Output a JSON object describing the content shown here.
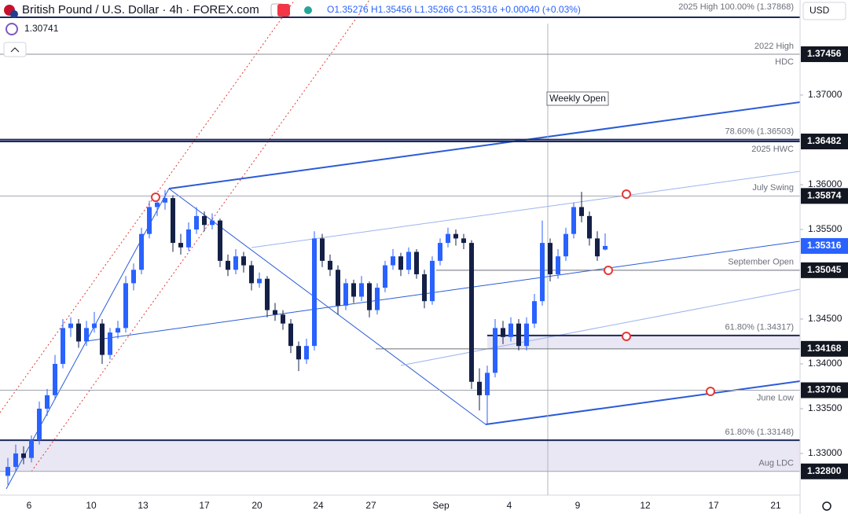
{
  "chart_data": {
    "type": "candlestick",
    "title": "British Pound / U.S. Dollar · 4h · FOREX.com",
    "ohlc_header": "O1.35276 H1.35456 L1.35266 C1.35316 +0.00040 (+0.03%)",
    "indicator_value": "1.30741",
    "currency": "USD",
    "annotation": "Weekly Open",
    "up_color": "#2962ff",
    "down_color": "#152047",
    "xlabels": [
      "6",
      "10",
      "13",
      "17",
      "20",
      "24",
      "27",
      "Sep",
      "4",
      "9",
      "12",
      "17",
      "21"
    ],
    "ylim": [
      1.32535,
      1.38061
    ],
    "yticks": [
      {
        "value": 1.37,
        "label": "1.37000"
      },
      {
        "value": 1.36,
        "label": "1.36000"
      },
      {
        "value": 1.355,
        "label": "1.35500"
      },
      {
        "value": 1.345,
        "label": "1.34500"
      },
      {
        "value": 1.34,
        "label": "1.34000"
      },
      {
        "value": 1.335,
        "label": "1.33500"
      },
      {
        "value": 1.33,
        "label": "1.33000"
      }
    ],
    "grid": false,
    "open": [
      1.3275,
      1.3285,
      1.33,
      1.3295,
      1.3315,
      1.335,
      1.3365,
      1.34,
      1.344,
      1.3445,
      1.3425,
      1.344,
      1.3445,
      1.341,
      1.3435,
      1.344,
      1.349,
      1.3505,
      1.3545,
      1.3575,
      1.358,
      1.3585,
      1.3535,
      1.353,
      1.355,
      1.3565,
      1.3555,
      1.356,
      1.3515,
      1.3505,
      1.352,
      1.351,
      1.349,
      1.3495,
      1.346,
      1.3455,
      1.3445,
      1.342,
      1.3405,
      1.342,
      1.354,
      1.3515,
      1.3505,
      1.3465,
      1.349,
      1.3475,
      1.349,
      1.346,
      1.3485,
      1.351,
      1.352,
      1.3505,
      1.3525,
      1.35,
      1.347,
      1.3515,
      1.3535,
      1.3545,
      1.354,
      1.3535,
      1.338,
      1.3365,
      1.339,
      1.344,
      1.343,
      1.3445,
      1.342,
      1.3445,
      1.347,
      1.3535,
      1.35,
      1.352,
      1.3545,
      1.3575,
      1.3565,
      1.354,
      1.35276
    ],
    "high": [
      1.3295,
      1.331,
      1.3308,
      1.332,
      1.3358,
      1.3372,
      1.341,
      1.345,
      1.3452,
      1.345,
      1.3448,
      1.3458,
      1.345,
      1.344,
      1.3448,
      1.3498,
      1.3512,
      1.3552,
      1.3582,
      1.359,
      1.3594,
      1.3588,
      1.3545,
      1.3558,
      1.3575,
      1.357,
      1.3568,
      1.3562,
      1.3522,
      1.3528,
      1.3525,
      1.3515,
      1.3502,
      1.3498,
      1.3468,
      1.346,
      1.345,
      1.3425,
      1.3428,
      1.3548,
      1.3545,
      1.3522,
      1.351,
      1.3495,
      1.3494,
      1.3498,
      1.3492,
      1.349,
      1.3515,
      1.3528,
      1.3524,
      1.353,
      1.3528,
      1.3505,
      1.352,
      1.354,
      1.3552,
      1.355,
      1.3545,
      1.3538,
      1.3395,
      1.3398,
      1.345,
      1.3448,
      1.3452,
      1.345,
      1.3452,
      1.3478,
      1.356,
      1.354,
      1.3528,
      1.3552,
      1.358,
      1.3592,
      1.357,
      1.3548,
      1.35456
    ],
    "low": [
      1.3265,
      1.328,
      1.3288,
      1.329,
      1.331,
      1.3342,
      1.336,
      1.3395,
      1.343,
      1.3418,
      1.342,
      1.3435,
      1.34,
      1.3405,
      1.3428,
      1.3435,
      1.3482,
      1.35,
      1.354,
      1.3565,
      1.3572,
      1.3525,
      1.3522,
      1.3526,
      1.3545,
      1.3548,
      1.355,
      1.3508,
      1.3498,
      1.35,
      1.3502,
      1.3482,
      1.3485,
      1.3452,
      1.3448,
      1.3438,
      1.3412,
      1.3392,
      1.34,
      1.3415,
      1.3508,
      1.3498,
      1.3455,
      1.346,
      1.3468,
      1.347,
      1.3452,
      1.3455,
      1.348,
      1.3505,
      1.3498,
      1.35,
      1.3495,
      1.3462,
      1.3466,
      1.351,
      1.353,
      1.3532,
      1.3528,
      1.3372,
      1.3348,
      1.3332,
      1.3385,
      1.3422,
      1.3425,
      1.3415,
      1.3415,
      1.344,
      1.3465,
      1.3492,
      1.3495,
      1.3515,
      1.354,
      1.3558,
      1.3532,
      1.3515,
      1.35266
    ],
    "close": [
      1.3285,
      1.33,
      1.3295,
      1.3315,
      1.335,
      1.3365,
      1.34,
      1.344,
      1.3445,
      1.3425,
      1.344,
      1.3445,
      1.341,
      1.3435,
      1.344,
      1.349,
      1.3505,
      1.3545,
      1.3575,
      1.358,
      1.3585,
      1.3535,
      1.353,
      1.355,
      1.3565,
      1.3555,
      1.356,
      1.3515,
      1.3505,
      1.352,
      1.351,
      1.349,
      1.3495,
      1.346,
      1.3455,
      1.3445,
      1.342,
      1.3405,
      1.342,
      1.354,
      1.3515,
      1.3505,
      1.3465,
      1.349,
      1.3475,
      1.349,
      1.346,
      1.3485,
      1.351,
      1.352,
      1.3505,
      1.3525,
      1.35,
      1.347,
      1.3515,
      1.3535,
      1.3545,
      1.354,
      1.3535,
      1.338,
      1.3365,
      1.339,
      1.344,
      1.343,
      1.3445,
      1.342,
      1.3445,
      1.347,
      1.3535,
      1.35,
      1.352,
      1.3545,
      1.3575,
      1.3565,
      1.354,
      1.352,
      1.35316
    ],
    "last_price_label": "1.35316",
    "last_price_color": "#2962ff",
    "levels": [
      {
        "text": "2025 High 100.00% (1.37868)",
        "value": 1.37868,
        "color": "#1c2a5a"
      },
      {
        "text": "2022 High",
        "note": "HDC",
        "value": 1.37456,
        "value_label": "1.37456",
        "color": "#8a8e99"
      },
      {
        "text": "78.60% (1.36503)",
        "value": 1.36503,
        "color": "#1c2a5a"
      },
      {
        "note": "2025 HWC",
        "value": 1.36482,
        "value_label": "1.36482",
        "color": "#1c2a5a"
      },
      {
        "text": "July Swing",
        "value": 1.35874,
        "value_label": "1.35874",
        "color": "#a0a4ae"
      },
      {
        "text": "September Open",
        "value": 1.35045,
        "value_label": "1.35045",
        "color": "#6b6f7a"
      },
      {
        "text": "61.80% (1.34317)",
        "value": 1.34317,
        "color": "#1c2a5a"
      },
      {
        "value": 1.34168,
        "value_label": "1.34168",
        "color": "#6b6f7a"
      },
      {
        "note": "June Low",
        "value": 1.33706,
        "value_label": "1.33706",
        "color": "#a0a4ae"
      },
      {
        "text": "61.80% (1.33148)",
        "value": 1.33148,
        "color": "#1c2a5a"
      },
      {
        "text": "Aug LDC",
        "value": 1.328,
        "value_label": "1.32800",
        "color": "#a0a4ae"
      }
    ]
  }
}
